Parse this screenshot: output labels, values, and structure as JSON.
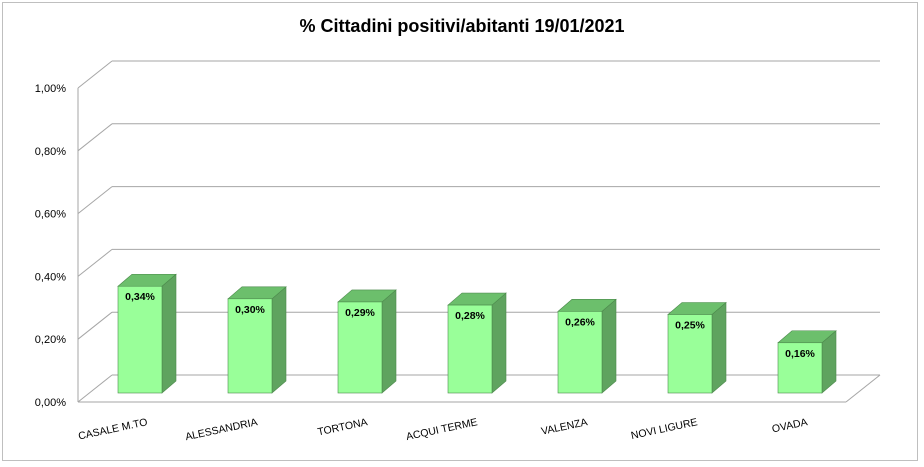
{
  "chart_data": {
    "type": "bar",
    "title": "% Cittadini positivi/abitanti 19/01/2021",
    "categories": [
      "CASALE M.TO",
      "ALESSANDRIA",
      "TORTONA",
      "ACQUI TERME",
      "VALENZA",
      "NOVI LIGURE",
      "OVADA"
    ],
    "values": [
      0.34,
      0.3,
      0.29,
      0.28,
      0.26,
      0.25,
      0.16
    ],
    "data_labels": [
      "0,34%",
      "0,30%",
      "0,29%",
      "0,28%",
      "0,26%",
      "0,25%",
      "0,16%"
    ],
    "ylim": [
      0,
      1.0
    ],
    "yticks": [
      0,
      0.2,
      0.4,
      0.6,
      0.8,
      1.0
    ],
    "ytick_labels": [
      "0,00%",
      "0,20%",
      "0,40%",
      "0,60%",
      "0,80%",
      "1,00%"
    ],
    "xlabel": "",
    "ylabel": "",
    "grid": true,
    "legend": "none",
    "colors": {
      "bar_front": "#99ff99",
      "bar_side": "#5fa35f",
      "bar_top": "#6cbf6c",
      "bar_edge": "#4c8a4c",
      "grid": "#a6a6a6"
    }
  }
}
